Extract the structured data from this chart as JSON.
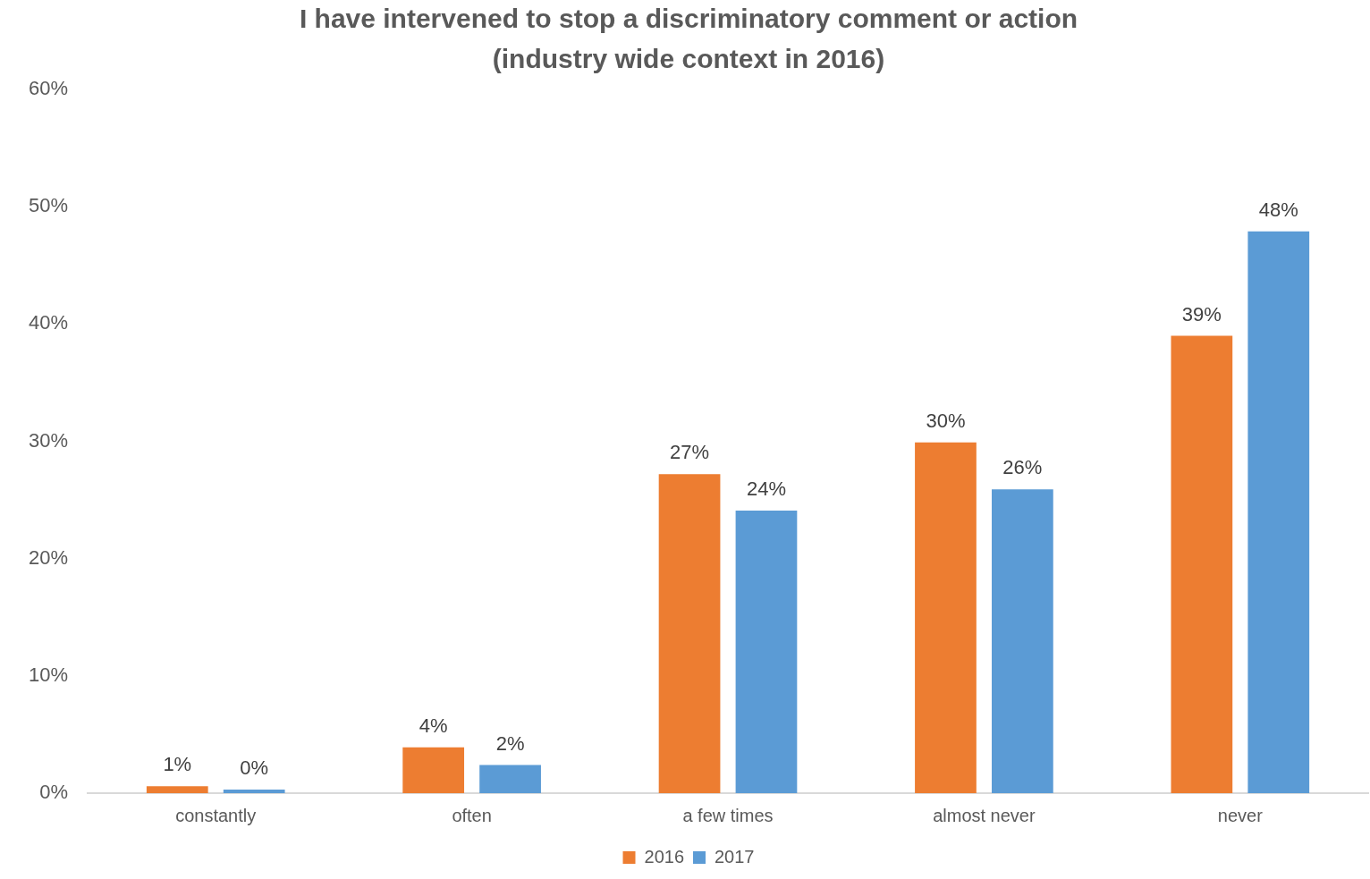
{
  "chart_data": {
    "type": "bar",
    "title": "I have intervened to stop a discriminatory comment or action\n(industry wide context in 2016)",
    "categories": [
      "constantly",
      "often",
      "a few times",
      "almost never",
      "never"
    ],
    "series": [
      {
        "name": "2016",
        "color": "#ed7d31",
        "values": [
          0.6,
          3.9,
          27.2,
          29.9,
          39
        ],
        "value_labels": [
          "1%",
          "4%",
          "27%",
          "30%",
          "39%"
        ]
      },
      {
        "name": "2017",
        "color": "#5b9bd5",
        "values": [
          0.3,
          2.4,
          24.1,
          25.9,
          47.9
        ],
        "value_labels": [
          "0%",
          "2%",
          "24%",
          "26%",
          "48%"
        ]
      }
    ],
    "ylim": [
      0,
      60
    ],
    "yticks": [
      {
        "value": 0,
        "label": "0%"
      },
      {
        "value": 10,
        "label": "10%"
      },
      {
        "value": 20,
        "label": "20%"
      },
      {
        "value": 30,
        "label": "30%"
      },
      {
        "value": 40,
        "label": "40%"
      },
      {
        "value": 50,
        "label": "50%"
      },
      {
        "value": 60,
        "label": "60%"
      }
    ],
    "grid": false,
    "legend": "bottom"
  }
}
